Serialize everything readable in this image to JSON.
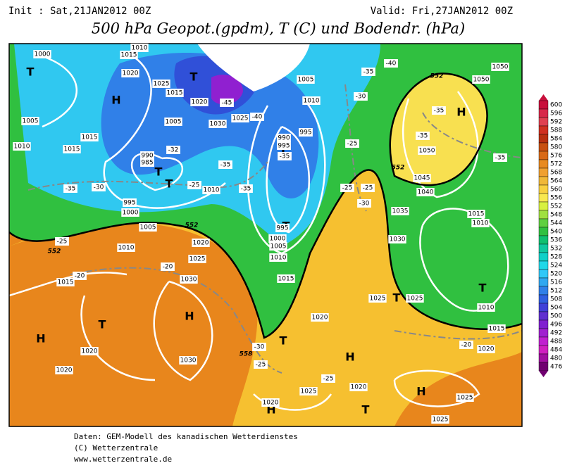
{
  "header": {
    "init": "Init : Sat,21JAN2012 00Z",
    "valid": "Valid: Fri,27JAN2012 00Z",
    "title": "500 hPa Geopot.(gpdm), T (C) und Bodendr. (hPa)"
  },
  "footer": [
    "Daten: GEM-Modell des kanadischen Wetterdienstes",
    "(C) Wetterzentrale",
    "www.wetterzentrale.de"
  ],
  "colorbar": {
    "ticks": [
      600,
      596,
      592,
      588,
      584,
      580,
      576,
      572,
      568,
      564,
      560,
      556,
      552,
      548,
      544,
      540,
      536,
      532,
      528,
      524,
      520,
      516,
      512,
      508,
      504,
      500,
      496,
      492,
      488,
      484,
      480,
      476
    ],
    "colors": [
      "#c8103c",
      "#d8284a",
      "#e04050",
      "#d03020",
      "#b83010",
      "#c85010",
      "#d86a18",
      "#e88a20",
      "#f0a030",
      "#f0b838",
      "#f8d040",
      "#f8e850",
      "#d8f040",
      "#a0e040",
      "#60d040",
      "#30c040",
      "#10c070",
      "#10c8a0",
      "#10d0c8",
      "#20d8e8",
      "#30c8f8",
      "#30a8f0",
      "#3080e8",
      "#3060e0",
      "#4040d8",
      "#6030d0",
      "#8020d0",
      "#a020d0",
      "#c020d0",
      "#d020c0",
      "#a010a0",
      "#700070"
    ]
  },
  "centers": [
    "T",
    "H",
    "T",
    "T",
    "T",
    "T",
    "T",
    "H",
    "T",
    "T",
    "H",
    "H",
    "T",
    "T",
    "H",
    "H",
    "H",
    "T"
  ],
  "isobar_labels": [
    "1000",
    "1015",
    "1010",
    "1020",
    "1025",
    "1015",
    "1020",
    "1005",
    "1030",
    "1025",
    "1010",
    "1005",
    "1005",
    "1010",
    "1015",
    "1015",
    "990",
    "985",
    "995",
    "1000",
    "1005",
    "1010",
    "1010",
    "995",
    "995",
    "990",
    "995",
    "1000",
    "1005",
    "1010",
    "1015",
    "1020",
    "1025",
    "1030",
    "1015",
    "1020",
    "1020",
    "1030",
    "1020",
    "1025",
    "1025",
    "1020",
    "1025",
    "1025",
    "1025",
    "1020",
    "1020",
    "1050",
    "1050",
    "1050",
    "1045",
    "1040",
    "1035",
    "1030",
    "1015",
    "1010",
    "1010",
    "1015"
  ],
  "temperature_labels": [
    "-35",
    "-30",
    "-25",
    "-35",
    "-40",
    "-45",
    "-35",
    "-40",
    "-30",
    "-25",
    "-30",
    "-25",
    "-25",
    "-35",
    "-35",
    "-35",
    "-25",
    "-20",
    "-20",
    "-25",
    "-20",
    "-30",
    "-35",
    "-35",
    "-32",
    "-25"
  ],
  "height_labels": [
    "552",
    "552",
    "552",
    "552",
    "558"
  ]
}
